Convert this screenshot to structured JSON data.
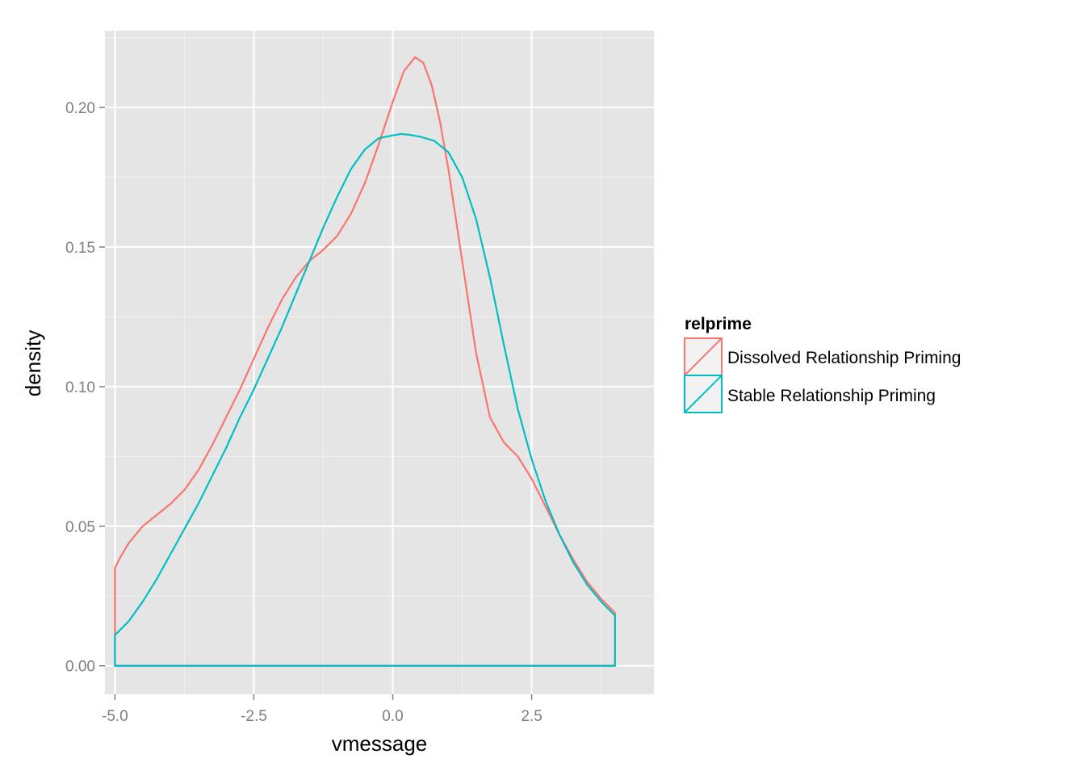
{
  "chart_data": {
    "type": "area",
    "xlabel": "vmessage",
    "ylabel": "density",
    "xlim": [
      -5.18,
      4.7
    ],
    "ylim": [
      -0.0102,
      0.2275
    ],
    "x_ticks": [
      -5.0,
      -2.5,
      0.0,
      2.5
    ],
    "x_tick_labels": [
      "-5.0",
      "-2.5",
      "0.0",
      "2.5"
    ],
    "y_ticks": [
      0.0,
      0.05,
      0.1,
      0.15,
      0.2
    ],
    "y_tick_labels": [
      "0.00",
      "0.05",
      "0.10",
      "0.15",
      "0.20"
    ],
    "grid": true,
    "legend": {
      "title": "relprime",
      "position": "right"
    },
    "series": [
      {
        "name": "Dissolved Relationship Priming",
        "color": "#F8766D",
        "x": [
          -5.0,
          -4.9,
          -4.75,
          -4.5,
          -4.25,
          -4.0,
          -3.75,
          -3.5,
          -3.25,
          -3.0,
          -2.75,
          -2.5,
          -2.25,
          -2.0,
          -1.75,
          -1.5,
          -1.25,
          -1.0,
          -0.75,
          -0.5,
          -0.25,
          0.0,
          0.2,
          0.4,
          0.55,
          0.7,
          0.85,
          1.0,
          1.25,
          1.5,
          1.75,
          2.0,
          2.25,
          2.5,
          2.75,
          3.0,
          3.25,
          3.5,
          3.75,
          4.0
        ],
        "values": [
          0.035,
          0.039,
          0.044,
          0.05,
          0.054,
          0.058,
          0.063,
          0.07,
          0.079,
          0.089,
          0.099,
          0.11,
          0.121,
          0.131,
          0.139,
          0.145,
          0.149,
          0.154,
          0.162,
          0.173,
          0.187,
          0.202,
          0.213,
          0.218,
          0.216,
          0.208,
          0.195,
          0.178,
          0.145,
          0.112,
          0.089,
          0.08,
          0.075,
          0.067,
          0.057,
          0.047,
          0.038,
          0.03,
          0.024,
          0.019
        ]
      },
      {
        "name": "Stable Relationship Priming",
        "color": "#00BFC4",
        "x": [
          -5.0,
          -4.75,
          -4.5,
          -4.25,
          -4.0,
          -3.75,
          -3.5,
          -3.25,
          -3.0,
          -2.75,
          -2.5,
          -2.25,
          -2.0,
          -1.75,
          -1.5,
          -1.25,
          -1.0,
          -0.75,
          -0.5,
          -0.25,
          0.0,
          0.15,
          0.3,
          0.5,
          0.75,
          1.0,
          1.25,
          1.5,
          1.75,
          2.0,
          2.25,
          2.5,
          2.75,
          3.0,
          3.25,
          3.5,
          3.75,
          4.0
        ],
        "values": [
          0.011,
          0.016,
          0.023,
          0.031,
          0.04,
          0.049,
          0.058,
          0.068,
          0.078,
          0.089,
          0.099,
          0.11,
          0.121,
          0.133,
          0.145,
          0.157,
          0.168,
          0.178,
          0.185,
          0.189,
          0.19,
          0.1905,
          0.1902,
          0.1895,
          0.188,
          0.184,
          0.175,
          0.16,
          0.139,
          0.115,
          0.092,
          0.074,
          0.059,
          0.047,
          0.037,
          0.029,
          0.023,
          0.018
        ]
      }
    ]
  },
  "colors": {
    "panel_background": "#E5E5E5",
    "grid_major": "#FFFFFF",
    "grid_minor": "#F2F2F2",
    "tick_text": "#7F7F7F",
    "legend_key_background": "#F2F2F2"
  }
}
